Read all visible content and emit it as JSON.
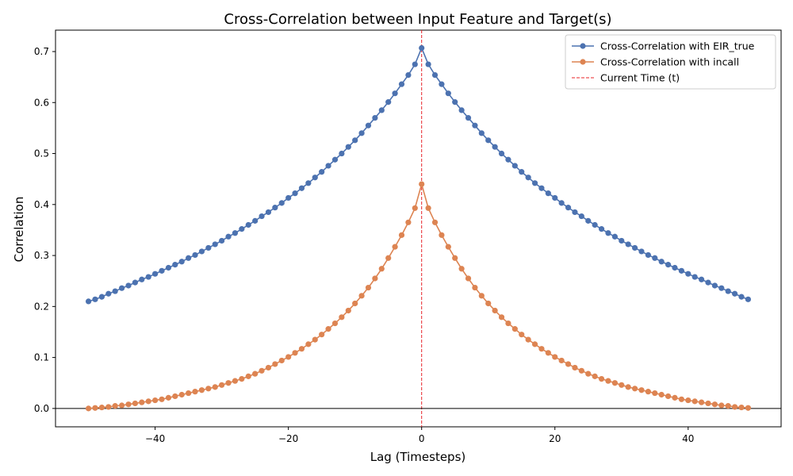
{
  "chart_data": {
    "type": "line",
    "title": "Cross-Correlation between Input Feature and Target(s)",
    "xlabel": "Lag (Timesteps)",
    "ylabel": "Correlation",
    "xlim": [
      -54.95,
      53.95
    ],
    "ylim": [
      -0.036,
      0.742
    ],
    "xticks": [
      -40,
      -20,
      0,
      20,
      40
    ],
    "xtick_labels": [
      "−40",
      "−20",
      "0",
      "20",
      "40"
    ],
    "yticks": [
      0.0,
      0.1,
      0.2,
      0.3,
      0.4,
      0.5,
      0.6,
      0.7
    ],
    "ytick_labels": [
      "0.0",
      "0.1",
      "0.2",
      "0.3",
      "0.4",
      "0.5",
      "0.6",
      "0.7"
    ],
    "grid": false,
    "legend_position": "top-right",
    "x": [
      -50,
      -49,
      -48,
      -47,
      -46,
      -45,
      -44,
      -43,
      -42,
      -41,
      -40,
      -39,
      -38,
      -37,
      -36,
      -35,
      -34,
      -33,
      -32,
      -31,
      -30,
      -29,
      -28,
      -27,
      -26,
      -25,
      -24,
      -23,
      -22,
      -21,
      -20,
      -19,
      -18,
      -17,
      -16,
      -15,
      -14,
      -13,
      -12,
      -11,
      -10,
      -9,
      -8,
      -7,
      -6,
      -5,
      -4,
      -3,
      -2,
      -1,
      0,
      1,
      2,
      3,
      4,
      5,
      6,
      7,
      8,
      9,
      10,
      11,
      12,
      13,
      14,
      15,
      16,
      17,
      18,
      19,
      20,
      21,
      22,
      23,
      24,
      25,
      26,
      27,
      28,
      29,
      30,
      31,
      32,
      33,
      34,
      35,
      36,
      37,
      38,
      39,
      40,
      41,
      42,
      43,
      44,
      45,
      46,
      47,
      48,
      49
    ],
    "series": [
      {
        "name": "Cross-Correlation with EIR_true",
        "color": "#4c72b0",
        "values": [
          0.21,
          0.214,
          0.219,
          0.225,
          0.23,
          0.236,
          0.241,
          0.247,
          0.253,
          0.258,
          0.264,
          0.27,
          0.276,
          0.282,
          0.288,
          0.295,
          0.301,
          0.308,
          0.315,
          0.322,
          0.329,
          0.337,
          0.344,
          0.352,
          0.36,
          0.368,
          0.377,
          0.385,
          0.394,
          0.403,
          0.413,
          0.422,
          0.432,
          0.442,
          0.453,
          0.464,
          0.476,
          0.488,
          0.5,
          0.513,
          0.526,
          0.54,
          0.555,
          0.57,
          0.585,
          0.601,
          0.618,
          0.636,
          0.654,
          0.675,
          0.707,
          0.675,
          0.654,
          0.636,
          0.618,
          0.601,
          0.585,
          0.57,
          0.555,
          0.54,
          0.526,
          0.513,
          0.5,
          0.488,
          0.476,
          0.464,
          0.453,
          0.442,
          0.432,
          0.422,
          0.413,
          0.403,
          0.394,
          0.385,
          0.377,
          0.368,
          0.36,
          0.352,
          0.344,
          0.337,
          0.329,
          0.322,
          0.315,
          0.308,
          0.301,
          0.295,
          0.288,
          0.282,
          0.276,
          0.27,
          0.264,
          0.258,
          0.253,
          0.247,
          0.241,
          0.236,
          0.23,
          0.225,
          0.219,
          0.214
        ]
      },
      {
        "name": "Cross-Correlation with incall",
        "color": "#dd8452",
        "values": [
          0.0,
          0.001,
          0.002,
          0.003,
          0.005,
          0.006,
          0.008,
          0.01,
          0.012,
          0.014,
          0.016,
          0.018,
          0.021,
          0.024,
          0.027,
          0.03,
          0.033,
          0.036,
          0.039,
          0.042,
          0.046,
          0.05,
          0.054,
          0.058,
          0.063,
          0.068,
          0.074,
          0.08,
          0.087,
          0.094,
          0.101,
          0.109,
          0.117,
          0.126,
          0.135,
          0.145,
          0.156,
          0.167,
          0.179,
          0.192,
          0.206,
          0.221,
          0.237,
          0.255,
          0.274,
          0.295,
          0.317,
          0.34,
          0.365,
          0.393,
          0.44,
          0.393,
          0.365,
          0.34,
          0.317,
          0.295,
          0.274,
          0.255,
          0.237,
          0.221,
          0.206,
          0.192,
          0.179,
          0.167,
          0.156,
          0.145,
          0.135,
          0.126,
          0.117,
          0.109,
          0.101,
          0.094,
          0.087,
          0.08,
          0.074,
          0.068,
          0.063,
          0.058,
          0.054,
          0.05,
          0.046,
          0.042,
          0.039,
          0.036,
          0.033,
          0.03,
          0.027,
          0.024,
          0.021,
          0.018,
          0.016,
          0.014,
          0.012,
          0.01,
          0.008,
          0.006,
          0.005,
          0.003,
          0.002,
          0.001
        ]
      }
    ],
    "reference_lines": [
      {
        "type": "vertical",
        "x": 0,
        "name": "Current Time (t)",
        "color": "#e8242a",
        "style": "dashed"
      },
      {
        "type": "horizontal",
        "y": 0,
        "color": "#000000",
        "style": "solid"
      }
    ]
  }
}
